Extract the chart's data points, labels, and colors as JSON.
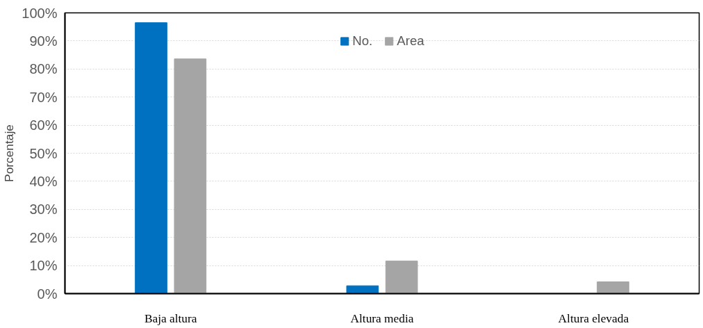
{
  "chart_data": {
    "type": "bar",
    "ylabel": "Porcentaje",
    "categories": [
      "Baja altura",
      "Altura media",
      "Altura elevada"
    ],
    "series": [
      {
        "name": "No.",
        "color": "#0070c0",
        "values": [
          96.5,
          2.8,
          0
        ]
      },
      {
        "name": "Area",
        "color": "#a5a5a5",
        "values": [
          83.6,
          11.6,
          4.2
        ]
      }
    ],
    "ylim": [
      0,
      100
    ],
    "yticks": [
      {
        "value": 0,
        "label": "0%"
      },
      {
        "value": 10,
        "label": "10%"
      },
      {
        "value": 20,
        "label": "20%"
      },
      {
        "value": 30,
        "label": "30%"
      },
      {
        "value": 40,
        "label": "40%"
      },
      {
        "value": 50,
        "label": "50%"
      },
      {
        "value": 60,
        "label": "60%"
      },
      {
        "value": 70,
        "label": "70%"
      },
      {
        "value": 80,
        "label": "80%"
      },
      {
        "value": 90,
        "label": "90%"
      },
      {
        "value": 100,
        "label": "100%"
      }
    ],
    "grid": "y",
    "legend": "top"
  }
}
